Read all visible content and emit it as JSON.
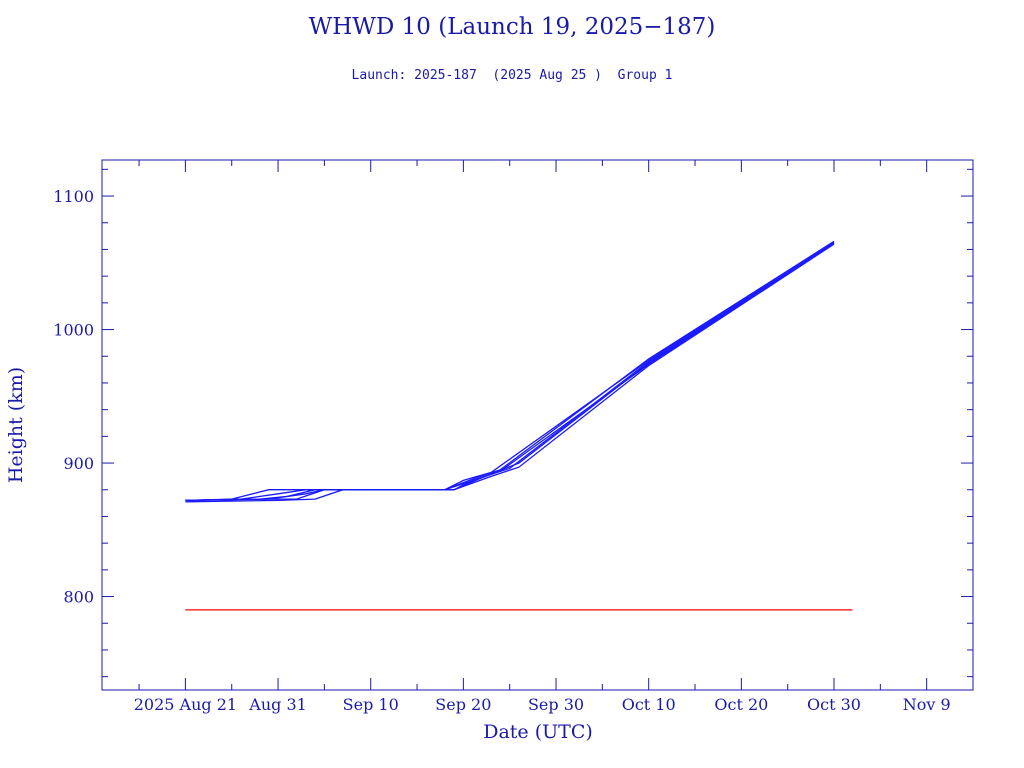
{
  "header": {
    "title": "WHWD 10 (Launch 19, 2025−187)",
    "subtitle": "Launch: 2025-187  (2025 Aug 25 )  Group 1"
  },
  "chart_data": {
    "type": "line",
    "xlabel": "Date (UTC)",
    "ylabel": "Height (km)",
    "xlim": [
      "2025-08-12",
      "2025-11-14"
    ],
    "ylim": [
      730,
      1127
    ],
    "x_ticks": [
      {
        "date": "2025-08-21",
        "label": "2025 Aug 21"
      },
      {
        "date": "2025-08-31",
        "label": "Aug 31"
      },
      {
        "date": "2025-09-10",
        "label": "Sep 10"
      },
      {
        "date": "2025-09-20",
        "label": "Sep 20"
      },
      {
        "date": "2025-09-30",
        "label": "Sep 30"
      },
      {
        "date": "2025-10-10",
        "label": "Oct 10"
      },
      {
        "date": "2025-10-20",
        "label": "Oct 20"
      },
      {
        "date": "2025-10-30",
        "label": "Oct 30"
      },
      {
        "date": "2025-11-09",
        "label": "Nov 9"
      }
    ],
    "y_ticks": [
      800,
      900,
      1000,
      1100
    ],
    "grid": false,
    "series": [
      {
        "color": "#1a1aff",
        "points": [
          [
            "2025-08-21",
            872
          ],
          [
            "2025-08-26",
            873
          ],
          [
            "2025-08-30",
            880
          ],
          [
            "2025-09-18",
            880
          ],
          [
            "2025-09-20",
            887
          ],
          [
            "2025-09-23",
            893
          ],
          [
            "2025-10-10",
            977
          ],
          [
            "2025-10-30",
            1066
          ]
        ]
      },
      {
        "color": "#1a1aff",
        "points": [
          [
            "2025-08-21",
            872
          ],
          [
            "2025-08-28",
            873
          ],
          [
            "2025-09-02",
            873
          ],
          [
            "2025-09-05",
            880
          ],
          [
            "2025-09-19",
            880
          ],
          [
            "2025-09-22",
            889
          ],
          [
            "2025-09-26",
            900
          ],
          [
            "2025-10-10",
            975
          ],
          [
            "2025-10-30",
            1065
          ]
        ]
      },
      {
        "color": "#1a1aff",
        "points": [
          [
            "2025-08-21",
            871
          ],
          [
            "2025-08-31",
            872
          ],
          [
            "2025-09-04",
            873
          ],
          [
            "2025-09-07",
            880
          ],
          [
            "2025-09-19",
            880
          ],
          [
            "2025-09-23",
            890
          ],
          [
            "2025-09-26",
            897
          ],
          [
            "2025-10-10",
            973
          ],
          [
            "2025-10-30",
            1064
          ]
        ]
      },
      {
        "color": "#1a1aff",
        "points": [
          [
            "2025-08-21",
            872
          ],
          [
            "2025-08-27",
            873
          ],
          [
            "2025-08-31",
            877
          ],
          [
            "2025-09-03",
            880
          ],
          [
            "2025-09-18",
            880
          ],
          [
            "2025-09-21",
            888
          ],
          [
            "2025-09-24",
            895
          ],
          [
            "2025-10-10",
            978
          ],
          [
            "2025-10-30",
            1066
          ]
        ]
      },
      {
        "color": "#1a1aff",
        "points": [
          [
            "2025-08-21",
            872
          ],
          [
            "2025-08-29",
            873
          ],
          [
            "2025-09-01",
            875
          ],
          [
            "2025-09-04",
            880
          ],
          [
            "2025-09-19",
            880
          ],
          [
            "2025-09-21",
            887
          ],
          [
            "2025-09-25",
            896
          ],
          [
            "2025-10-10",
            976
          ],
          [
            "2025-10-30",
            1065
          ]
        ]
      },
      {
        "color": "#1a1aff",
        "points": [
          [
            "2025-08-21",
            872
          ],
          [
            "2025-08-30",
            873
          ],
          [
            "2025-09-03",
            877
          ],
          [
            "2025-09-05",
            880
          ],
          [
            "2025-09-18",
            880
          ],
          [
            "2025-09-22",
            889
          ],
          [
            "2025-09-24",
            894
          ],
          [
            "2025-10-10",
            974
          ],
          [
            "2025-10-30",
            1065
          ]
        ]
      },
      {
        "color": "#ff0000",
        "points": [
          [
            "2025-08-21",
            790
          ],
          [
            "2025-11-01",
            790
          ]
        ]
      }
    ]
  }
}
